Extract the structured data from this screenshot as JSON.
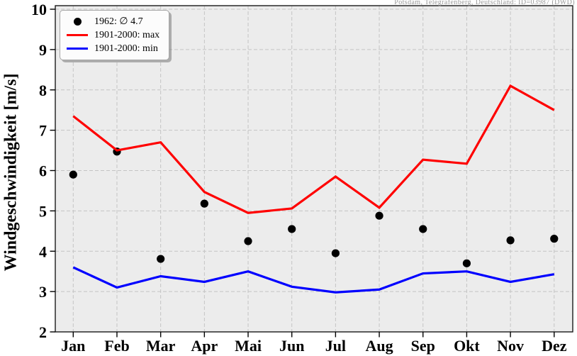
{
  "chart_data": {
    "type": "line",
    "title": "",
    "annotation": "Potsdam, Telegrafenberg, Deutschland: ID=03987 (DWD)",
    "xlabel": "",
    "ylabel": "Windgeschwindigkeit [m/s]",
    "categories": [
      "Jan",
      "Feb",
      "Mar",
      "Apr",
      "Mai",
      "Jun",
      "Jul",
      "Aug",
      "Sep",
      "Okt",
      "Nov",
      "Dez"
    ],
    "yticks": [
      2,
      3,
      4,
      5,
      6,
      7,
      8,
      9,
      10
    ],
    "ylim": [
      2,
      10
    ],
    "grid": true,
    "legend_position": "upper left",
    "series": [
      {
        "name": "1962: ∅ 4.7",
        "type": "scatter",
        "color": "#000000",
        "values": [
          5.9,
          6.47,
          3.81,
          5.18,
          4.25,
          4.55,
          3.95,
          4.88,
          4.55,
          3.7,
          4.27,
          4.31
        ]
      },
      {
        "name": "1901-2000: max",
        "type": "line",
        "color": "#ff0000",
        "values": [
          7.35,
          6.5,
          6.7,
          5.47,
          4.95,
          5.06,
          5.85,
          5.08,
          6.27,
          6.17,
          8.1,
          7.5
        ]
      },
      {
        "name": "1901-2000: min",
        "type": "line",
        "color": "#0000ff",
        "values": [
          3.6,
          3.1,
          3.38,
          3.24,
          3.5,
          3.12,
          2.98,
          3.05,
          3.45,
          3.5,
          3.24,
          3.43
        ]
      }
    ],
    "colors": {
      "plot_bg": "#ececec",
      "grid": "#c4c4c4",
      "frame": "#1a1a1a",
      "tick_label": "#000000",
      "station_text": "#999999"
    }
  }
}
